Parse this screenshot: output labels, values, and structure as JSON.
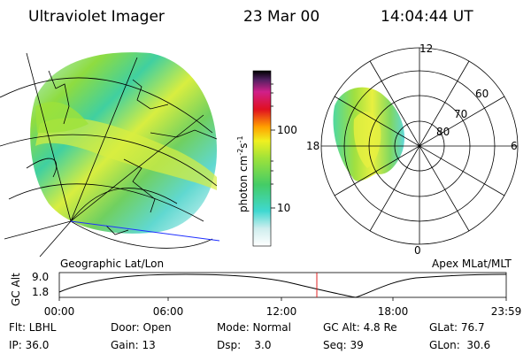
{
  "header": {
    "title": "Ultraviolet Imager",
    "date": "23 Mar 00",
    "time": "14:04:44 UT"
  },
  "geo_map": {
    "label": "Geographic Lat/Lon"
  },
  "colorbar": {
    "label": [
      "photon cm",
      "-2",
      "s",
      "-1"
    ],
    "ticks": [
      "100",
      "10"
    ]
  },
  "polar_map": {
    "label": "Apex MLat/MLT",
    "mlt_labels": [
      "12",
      "18",
      "6",
      "0"
    ],
    "mlat_labels": [
      "60",
      "70",
      "80"
    ]
  },
  "orbit_panel": {
    "axis_label": "GC Alt",
    "y_labels": [
      "9.0",
      "1.8"
    ],
    "time_labels": [
      "00:00",
      "06:00",
      "12:00",
      "18:00",
      "23:59"
    ]
  },
  "info": {
    "rows": [
      [
        "Flt: LBHL",
        "Door: Open",
        "Mode: Normal",
        "GC Alt: 4.8 Re",
        "GLat: 76.7"
      ],
      [
        "IP: 36.0",
        "Gain: 13",
        "Dsp:    3.0",
        "Seq: 39",
        "GLon:  30.6"
      ]
    ]
  }
}
